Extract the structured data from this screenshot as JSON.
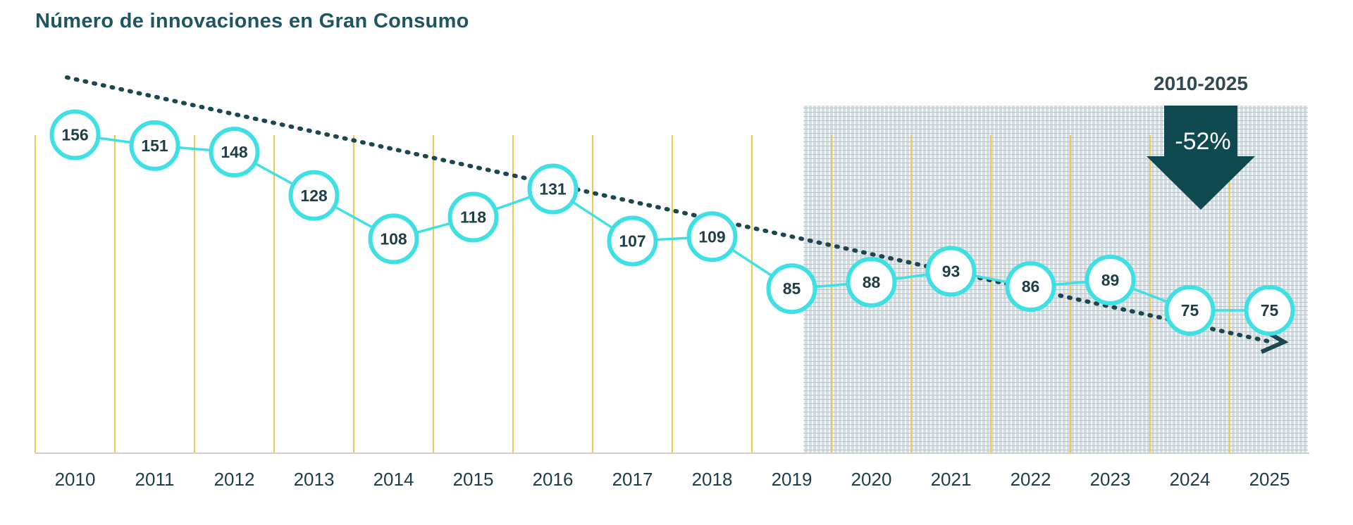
{
  "chart_data": {
    "type": "line",
    "title": "Número de innovaciones en Gran Consumo",
    "categories": [
      "2010",
      "2011",
      "2012",
      "2013",
      "2014",
      "2015",
      "2016",
      "2017",
      "2018",
      "2019",
      "2020",
      "2021",
      "2022",
      "2023",
      "2024",
      "2025"
    ],
    "series": [
      {
        "values": [
          156,
          151,
          148,
          128,
          108,
          118,
          131,
          107,
          109,
          85,
          88,
          93,
          86,
          89,
          75,
          75
        ],
        "color": "#3ee0e4"
      }
    ],
    "trend": {
      "style": "dotted-arrow",
      "color": "#1c4650"
    },
    "highlight_range": {
      "from": "2019",
      "to": "2025",
      "pattern": "hatched"
    },
    "annotation": {
      "period": "2010-2025",
      "change": "-52%",
      "arrow_color": "#0e4a4f"
    },
    "grid_color": "#f2c94c",
    "legend": "none"
  }
}
